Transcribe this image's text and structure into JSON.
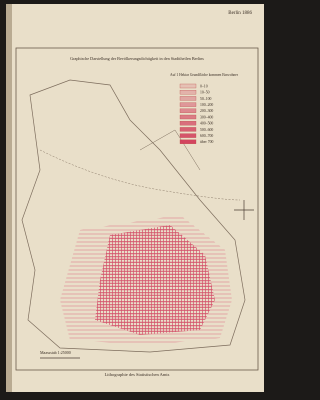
{
  "page": {
    "header": "Berlin 1886",
    "title": "Graphische Darstellung der Bevölkerungsdichtigkeit in den Stadttheilen Berlins",
    "legend": {
      "heading": "Auf 1 Hektar Grundfläche kommen Einwohner",
      "items": [
        "0–10",
        "10–50",
        "50–100",
        "100–200",
        "200–300",
        "300–400",
        "400–500",
        "500–600",
        "600–700",
        "über 700"
      ]
    },
    "scale_label": "Maassstab 1:25000",
    "footer": "Lithographie des Statistischen Amts"
  }
}
